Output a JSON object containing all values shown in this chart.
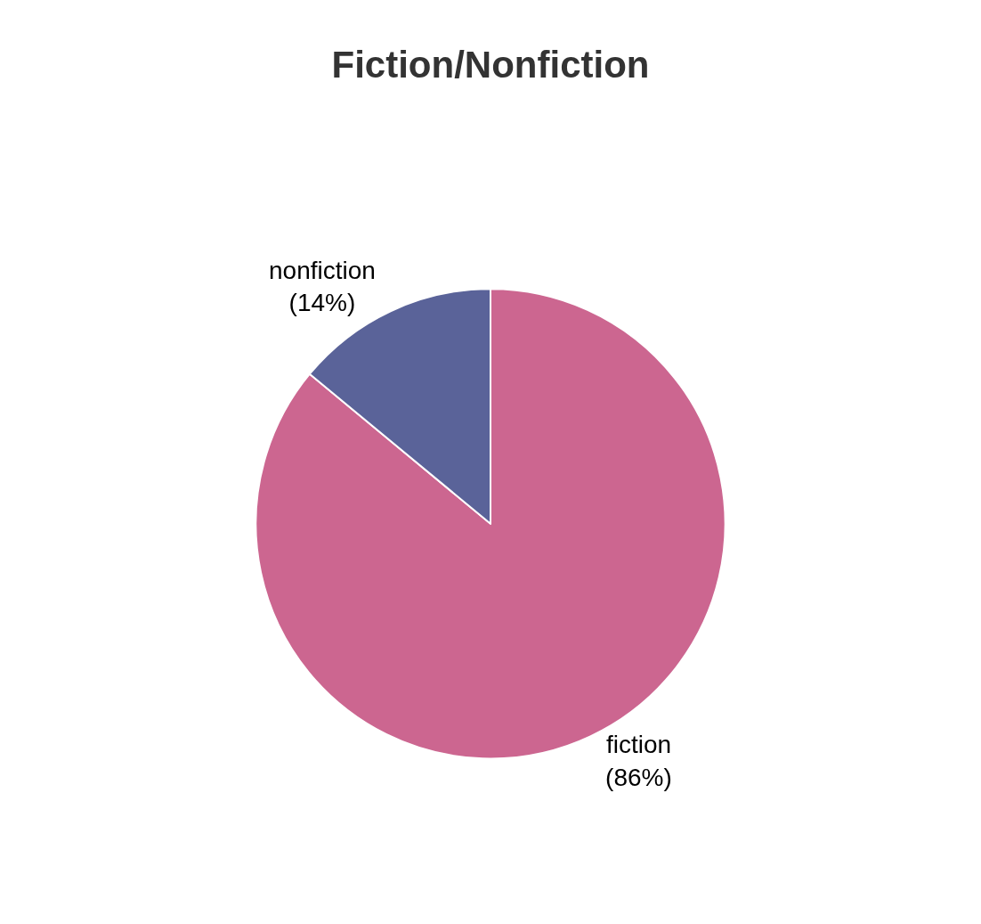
{
  "chart_data": {
    "type": "pie",
    "title": "Fiction/Nonfiction",
    "categories": [
      "fiction",
      "nonfiction"
    ],
    "values": [
      86,
      14
    ],
    "colors": [
      "#cc6690",
      "#5a6399"
    ],
    "value_labels": [
      "(86%)",
      "(14%)"
    ],
    "legend": false
  }
}
